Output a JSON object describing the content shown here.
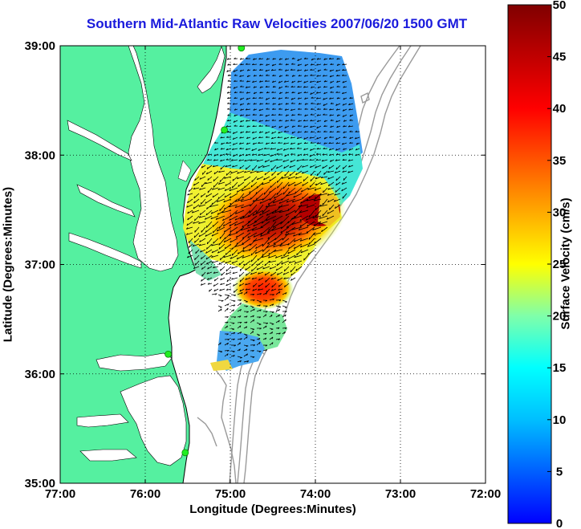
{
  "title": "Southern Mid-Atlantic Raw Velocities 2007/06/20 1500 GMT",
  "map": {
    "xlabel": "Longitude (Degrees:Minutes)",
    "ylabel": "Latitude (Degrees:Minutes)",
    "x_ticks": [
      "77:00",
      "76:00",
      "75:00",
      "74:00",
      "73:00",
      "72:00"
    ],
    "y_ticks": [
      "39:00",
      "38:00",
      "37:00",
      "36:00",
      "35:00"
    ],
    "lon_range": [
      -77,
      -72
    ],
    "lat_range": [
      35,
      39
    ],
    "grid": "dotted",
    "land_color": "#55f0a0",
    "water_color": "#ffffff",
    "station_color": "#22ee22",
    "stations": [
      {
        "lon": -74.87,
        "lat": 38.98
      },
      {
        "lon": -75.07,
        "lat": 38.23
      },
      {
        "lon": -75.73,
        "lat": 36.18
      },
      {
        "lon": -75.53,
        "lat": 35.28
      }
    ]
  },
  "colorbar": {
    "label": "Surface Velocity (cm/s)",
    "min": 0,
    "max": 50,
    "ticks": [
      "0",
      "5",
      "10",
      "15",
      "20",
      "25",
      "30",
      "35",
      "40",
      "45",
      "50"
    ]
  }
}
